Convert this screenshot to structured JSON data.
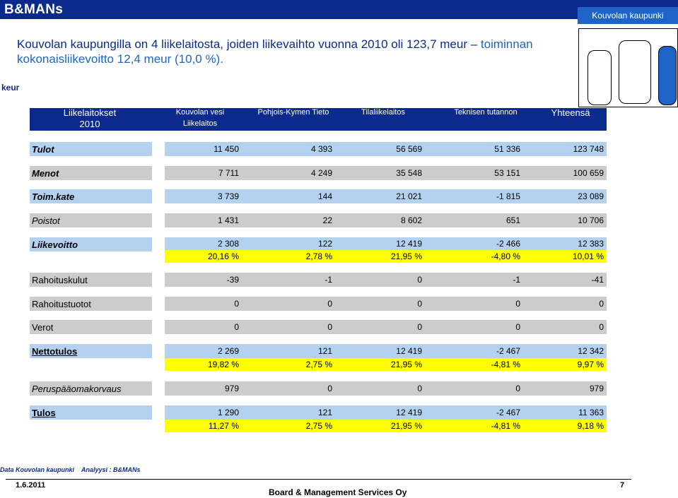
{
  "header": {
    "brand": "B&MANs",
    "city_badge": "Kouvolan kaupunki"
  },
  "headline": {
    "part1": "Kouvolan kaupungilla on 4 liikelaitosta, joiden liikevaihto vuonna 2010 oli 123,7 meur – ",
    "part2": "toiminnan kokonaisliikevoitto 12,4 meur (10,0 %)."
  },
  "unit_label": "keur",
  "table": {
    "header_label_line1": "Liikelaitokset",
    "header_label_line2": "2010",
    "columns": [
      {
        "line1": "Kouvolan vesi",
        "line2": "Liikelaitos"
      },
      {
        "line1": "Pohjois-Kymen Tieto",
        "line2": ""
      },
      {
        "line1": "Tilaliikelaitos",
        "line2": ""
      },
      {
        "line1": "Teknisen tutannon",
        "line2": ""
      },
      {
        "line1": "Yhteensä",
        "line2": ""
      }
    ],
    "rows": [
      {
        "label": "Tulot",
        "values": [
          "11 450",
          "4 393",
          "56 569",
          "51 336",
          "123 748"
        ]
      },
      {
        "label": "Menot",
        "values": [
          "7 711",
          "4 249",
          "35 548",
          "53 151",
          "100 659"
        ]
      },
      {
        "label": "Toim.kate",
        "values": [
          "3 739",
          "144",
          "21 021",
          "-1 815",
          "23 089"
        ]
      },
      {
        "label": "Poistot",
        "values": [
          "1 431",
          "22",
          "8 602",
          "651",
          "10 706"
        ]
      },
      {
        "label": "Liikevoitto",
        "values": [
          "2 308",
          "122",
          "12 419",
          "-2 466",
          "12 383"
        ],
        "pct": [
          "20,16 %",
          "2,78 %",
          "21,95 %",
          "-4,80 %",
          "10,01 %"
        ]
      },
      {
        "label": "Rahoituskulut",
        "values": [
          "-39",
          "-1",
          "0",
          "-1",
          "-41"
        ]
      },
      {
        "label": "Rahoitustuotot",
        "values": [
          "0",
          "0",
          "0",
          "0",
          "0"
        ]
      },
      {
        "label": "Verot",
        "values": [
          "0",
          "0",
          "0",
          "0",
          "0"
        ]
      },
      {
        "label": "Nettotulos",
        "values": [
          "2 269",
          "121",
          "12 419",
          "-2 467",
          "12 342"
        ],
        "pct": [
          "19,82 %",
          "2,75 %",
          "21,95 %",
          "-4,81 %",
          "9,97 %"
        ]
      },
      {
        "label": "Peruspääomakorvaus",
        "values": [
          "979",
          "0",
          "0",
          "0",
          "979"
        ]
      },
      {
        "label": "Tulos",
        "values": [
          "1 290",
          "121",
          "12 419",
          "-2 467",
          "11 363"
        ],
        "pct": [
          "11,27 %",
          "2,75 %",
          "21,95 %",
          "-4,81 %",
          "9,18 %"
        ]
      }
    ]
  },
  "footer": {
    "data_source": "Data Kouvolan kaupunki",
    "analysis": "Analyysi : B&MANs",
    "date": "1.6.2011",
    "company": "Board & Management Services Oy",
    "page_number": "7"
  },
  "colors": {
    "dark_blue": "#0b2a8c",
    "mid_blue": "#1e64c8",
    "row_grey": "#cccccc",
    "row_blue": "#b4d2f0",
    "highlight": "#ffff00"
  }
}
